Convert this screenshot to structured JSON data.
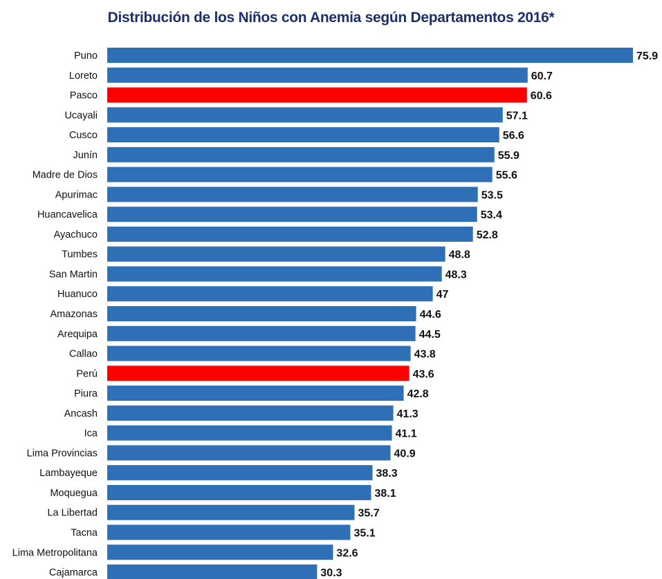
{
  "chart_data": {
    "type": "bar",
    "orientation": "horizontal",
    "title": "Distribución de los Niños con  Anemia según Departamentos 2016*",
    "xlabel": "",
    "ylabel": "",
    "xlim": [
      0,
      76
    ],
    "grid": false,
    "categories": [
      "Puno",
      "Loreto",
      "Pasco",
      "Ucayali",
      "Cusco",
      "Junín",
      "Madre de Dios",
      "Apurimac",
      "Huancavelica",
      "Ayachuco",
      "Tumbes",
      "San Martin",
      "Huanuco",
      "Amazonas",
      "Arequipa",
      "Callao",
      "Perú",
      "Piura",
      "Ancash",
      "Ica",
      "Lima Provincias",
      "Lambayeque",
      "Moquegua",
      "La Libertad",
      "Tacna",
      "Lima Metropolitana",
      "Cajamarca"
    ],
    "values": [
      75.9,
      60.7,
      60.6,
      57.1,
      56.6,
      55.9,
      55.6,
      53.5,
      53.4,
      52.8,
      48.8,
      48.3,
      47,
      44.6,
      44.5,
      43.8,
      43.6,
      42.8,
      41.3,
      41.1,
      40.9,
      38.3,
      38.1,
      35.7,
      35.1,
      32.6,
      30.3
    ],
    "value_labels": [
      "75.9",
      "60.7",
      "60.6",
      "57.1",
      "56.6",
      "55.9",
      "55.6",
      "53.5",
      "53.4",
      "52.8",
      "48.8",
      "48.3",
      "47",
      "44.6",
      "44.5",
      "43.8",
      "43.6",
      "42.8",
      "41.3",
      "41.1",
      "40.9",
      "38.3",
      "38.1",
      "35.7",
      "35.1",
      "32.6",
      "30.3"
    ],
    "highlighted": [
      "Pasco",
      "Perú"
    ],
    "colors": {
      "bar": "#2e6fb6",
      "highlight": "#ff0000",
      "title": "#1b2f6b"
    }
  }
}
